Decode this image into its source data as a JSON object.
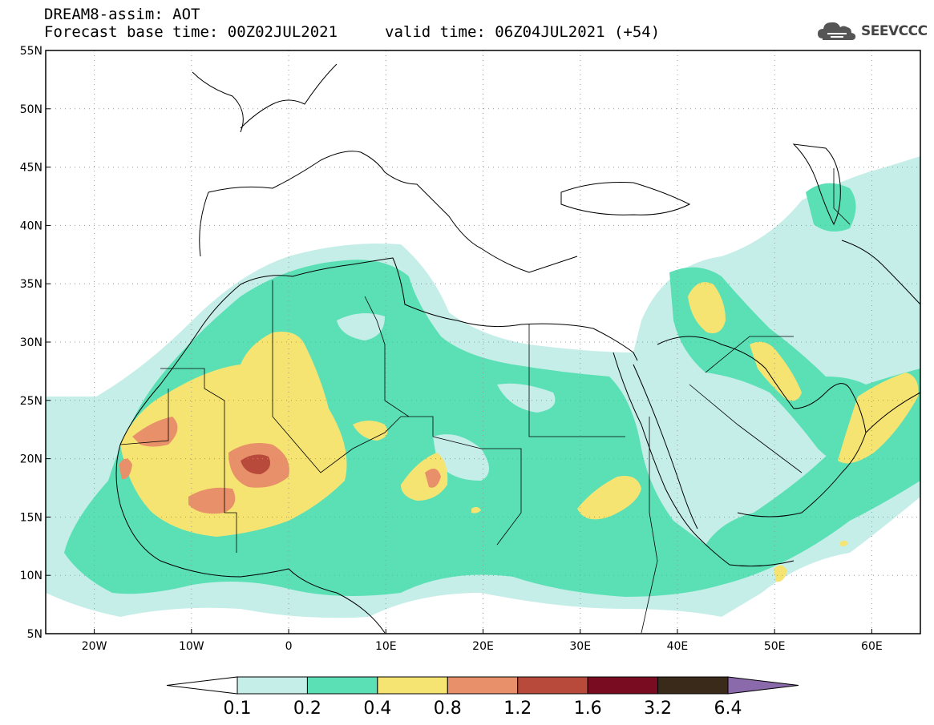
{
  "header": {
    "title": "DREAM8-assim: AOT",
    "base_time": "Forecast base time: 00Z02JUL2021",
    "valid_time": "valid time: 06Z04JUL2021 (+54)"
  },
  "logo": {
    "text": "SEEVCCC",
    "icon": "cloud-icon"
  },
  "map": {
    "lat_range": [
      5,
      55
    ],
    "lon_range": [
      -25,
      65
    ],
    "lat_ticks": [
      "5N",
      "10N",
      "15N",
      "20N",
      "25N",
      "30N",
      "35N",
      "40N",
      "45N",
      "50N",
      "55N"
    ],
    "lon_ticks": [
      "20W",
      "10W",
      "0",
      "10E",
      "20E",
      "30E",
      "40E",
      "50E",
      "60E"
    ],
    "gridlines": "dotted"
  },
  "colorbar": {
    "labels": [
      "0.1",
      "0.2",
      "0.4",
      "0.8",
      "1.2",
      "1.6",
      "3.2",
      "6.4"
    ],
    "colors": [
      "#ffffff",
      "#c5eee8",
      "#5be0b6",
      "#f6e472",
      "#e8906a",
      "#b84a3c",
      "#7a0c22",
      "#3a2a1a",
      "#8a6aaa"
    ]
  }
}
